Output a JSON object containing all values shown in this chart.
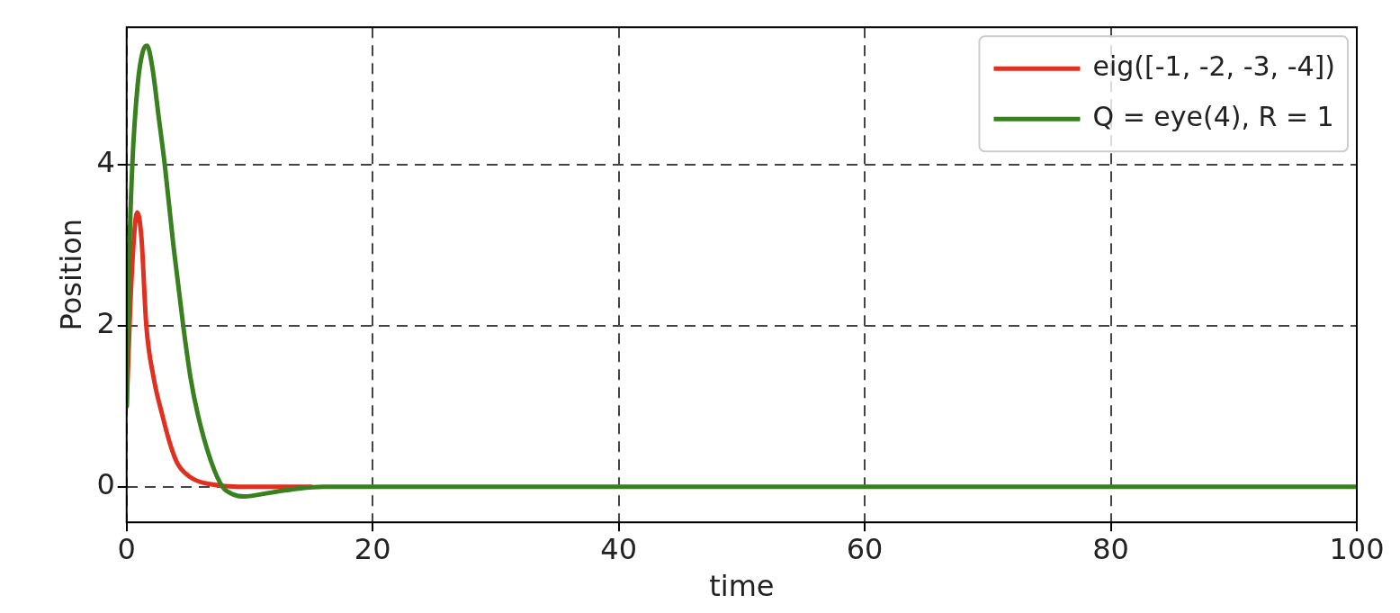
{
  "chart_data": {
    "type": "line",
    "xlabel": "time",
    "ylabel": "Position",
    "xlim": [
      0,
      100
    ],
    "ylim": [
      -0.44,
      5.71
    ],
    "xticks": [
      0,
      20,
      40,
      60,
      80,
      100
    ],
    "yticks": [
      0,
      2,
      4
    ],
    "grid": true,
    "line_style": "solid",
    "legend": "top right",
    "series": [
      {
        "name": "eig([-1, -2, -3, -4])",
        "color": "#e03020",
        "x": [
          0,
          0.4,
          0.86,
          1.2,
          1.6,
          2.2,
          2.9,
          3.5,
          4.1,
          5,
          6,
          7,
          8,
          10,
          15
        ],
        "values": [
          1.0,
          2.6,
          3.41,
          3.1,
          2.0,
          1.35,
          0.89,
          0.55,
          0.3,
          0.14,
          0.06,
          0.03,
          0.01,
          0,
          0
        ]
      },
      {
        "name": "Q = eye(4), R = 1",
        "color": "#3a8020",
        "x": [
          0,
          0.2,
          0.46,
          0.9,
          1.3,
          1.66,
          2.1,
          2.6,
          3.1,
          3.8,
          4.6,
          5.2,
          5.8,
          6.9,
          7.8,
          8.6,
          9.6,
          11,
          12.6,
          14,
          16,
          20,
          40,
          60,
          80,
          100
        ],
        "values": [
          1.0,
          2.8,
          4.0,
          5.0,
          5.4,
          5.48,
          5.2,
          4.6,
          4.0,
          3.0,
          2.0,
          1.35,
          0.89,
          0.3,
          0,
          -0.09,
          -0.12,
          -0.09,
          -0.05,
          -0.02,
          0,
          0,
          0,
          0,
          0,
          0
        ]
      }
    ]
  }
}
